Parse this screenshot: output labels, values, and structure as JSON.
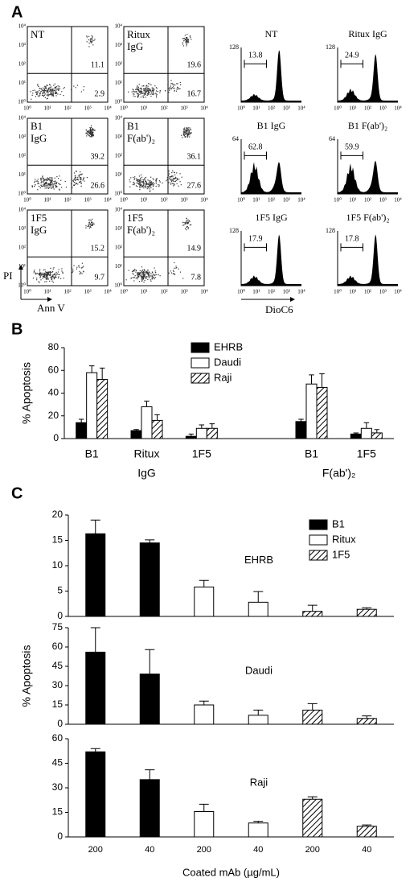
{
  "panel_a": {
    "panel": "A",
    "log_ticks": [
      "10⁰",
      "10¹",
      "10²",
      "10³",
      "10⁴"
    ],
    "y_axis_label": "PI",
    "x_axis_label": "Ann V",
    "histogram_x_label": "DioC6",
    "dot_plots": [
      {
        "label": [
          "NT"
        ],
        "upper_right": 11.1,
        "lower_right": 2.9
      },
      {
        "label": [
          "Ritux",
          "IgG"
        ],
        "upper_right": 19.6,
        "lower_right": 16.7
      },
      {
        "label": [
          "B1",
          "IgG"
        ],
        "upper_right": 39.2,
        "lower_right": 26.6
      },
      {
        "label": [
          "B1",
          "F(ab')₂"
        ],
        "upper_right": 36.1,
        "lower_right": 27.6
      },
      {
        "label": [
          "1F5",
          "IgG"
        ],
        "upper_right": 15.2,
        "lower_right": 9.7
      },
      {
        "label": [
          "1F5",
          "F(ab')₂"
        ],
        "upper_right": 14.9,
        "lower_right": 7.8
      }
    ],
    "histograms": [
      {
        "title": "NT",
        "ymax": 128,
        "gate": 13.8
      },
      {
        "title": "Ritux IgG",
        "ymax": 128,
        "gate": 24.9
      },
      {
        "title": "B1 IgG",
        "ymax": 64,
        "gate": 62.8
      },
      {
        "title": "B1 F(ab')₂",
        "ymax": 64,
        "gate": 59.9
      },
      {
        "title": "1F5 IgG",
        "ymax": 128,
        "gate": 17.9
      },
      {
        "title": "1F5 F(ab')₂",
        "ymax": 128,
        "gate": 17.8
      }
    ]
  },
  "chart_data": [
    {
      "type": "bar",
      "panel": "B",
      "ylabel": "% Apoptosis",
      "categories": [
        "B1",
        "Ritux",
        "1F5",
        null,
        "B1",
        "1F5"
      ],
      "groups": [
        "IgG",
        "F(ab')₂"
      ],
      "ylim": [
        0,
        80
      ],
      "yticks": [
        0,
        20,
        40,
        60,
        80
      ],
      "legend": true,
      "series": [
        {
          "name": "EHRB",
          "color": "#000000",
          "values": [
            14,
            7,
            2,
            null,
            15,
            4
          ],
          "errors": [
            3,
            1,
            2,
            null,
            2,
            1
          ]
        },
        {
          "name": "Daudi",
          "color": "#ffffff",
          "values": [
            58,
            28,
            9,
            null,
            48,
            9
          ],
          "errors": [
            6,
            5,
            3,
            null,
            8,
            5
          ]
        },
        {
          "name": "Raji",
          "color": "#ffffff",
          "hatch": true,
          "values": [
            52,
            16,
            9,
            null,
            45,
            5
          ],
          "errors": [
            10,
            5,
            4,
            null,
            12,
            3
          ]
        }
      ]
    },
    {
      "type": "bar",
      "panel": "C",
      "annotation": "EHRB",
      "ylim": [
        0,
        20
      ],
      "yticks": [
        0,
        5,
        10,
        15,
        20
      ],
      "legend": true,
      "series": [
        {
          "name": "B1",
          "color": "#000000",
          "values": [
            16.3,
            14.5,
            null,
            null,
            null,
            null
          ],
          "errors": [
            2.7,
            0.6,
            null,
            null,
            null,
            null
          ]
        },
        {
          "name": "Ritux",
          "color": "#ffffff",
          "values": [
            null,
            null,
            5.8,
            2.8,
            null,
            null
          ],
          "errors": [
            null,
            null,
            1.3,
            2.1,
            null,
            null
          ]
        },
        {
          "name": "1F5",
          "color": "#ffffff",
          "hatch": true,
          "values": [
            null,
            null,
            null,
            null,
            1.0,
            1.4
          ],
          "errors": [
            null,
            null,
            null,
            null,
            1.2,
            0.3
          ]
        }
      ]
    },
    {
      "type": "bar",
      "annotation": "Daudi",
      "ylabel": "% Apoptosis",
      "ylim": [
        0,
        75
      ],
      "yticks": [
        0,
        15,
        30,
        45,
        60,
        75
      ],
      "series": [
        {
          "name": "B1",
          "color": "#000000",
          "values": [
            56,
            39,
            null,
            null,
            null,
            null
          ],
          "errors": [
            19,
            19,
            null,
            null,
            null,
            null
          ]
        },
        {
          "name": "Ritux",
          "color": "#ffffff",
          "values": [
            null,
            null,
            15,
            7,
            null,
            null
          ],
          "errors": [
            null,
            null,
            3,
            4,
            null,
            null
          ]
        },
        {
          "name": "1F5",
          "color": "#ffffff",
          "hatch": true,
          "values": [
            null,
            null,
            null,
            null,
            11,
            4.5
          ],
          "errors": [
            null,
            null,
            null,
            null,
            5,
            2
          ]
        }
      ]
    },
    {
      "type": "bar",
      "annotation": "Raji",
      "xlabel": "Coated mAb (µg/mL)",
      "categories": [
        "200",
        "40",
        "200",
        "40",
        "200",
        "40"
      ],
      "ylim": [
        0,
        60
      ],
      "yticks": [
        0,
        15,
        30,
        45,
        60
      ],
      "series": [
        {
          "name": "B1",
          "color": "#000000",
          "values": [
            52,
            35,
            null,
            null,
            null,
            null
          ],
          "errors": [
            2,
            6,
            null,
            null,
            null,
            null
          ]
        },
        {
          "name": "Ritux",
          "color": "#ffffff",
          "values": [
            null,
            null,
            15.5,
            8.5,
            null,
            null
          ],
          "errors": [
            null,
            null,
            4.5,
            1,
            null,
            null
          ]
        },
        {
          "name": "1F5",
          "color": "#ffffff",
          "hatch": true,
          "values": [
            null,
            null,
            null,
            null,
            23,
            6.5
          ],
          "errors": [
            null,
            null,
            null,
            null,
            1.5,
            0.8
          ]
        }
      ]
    }
  ]
}
